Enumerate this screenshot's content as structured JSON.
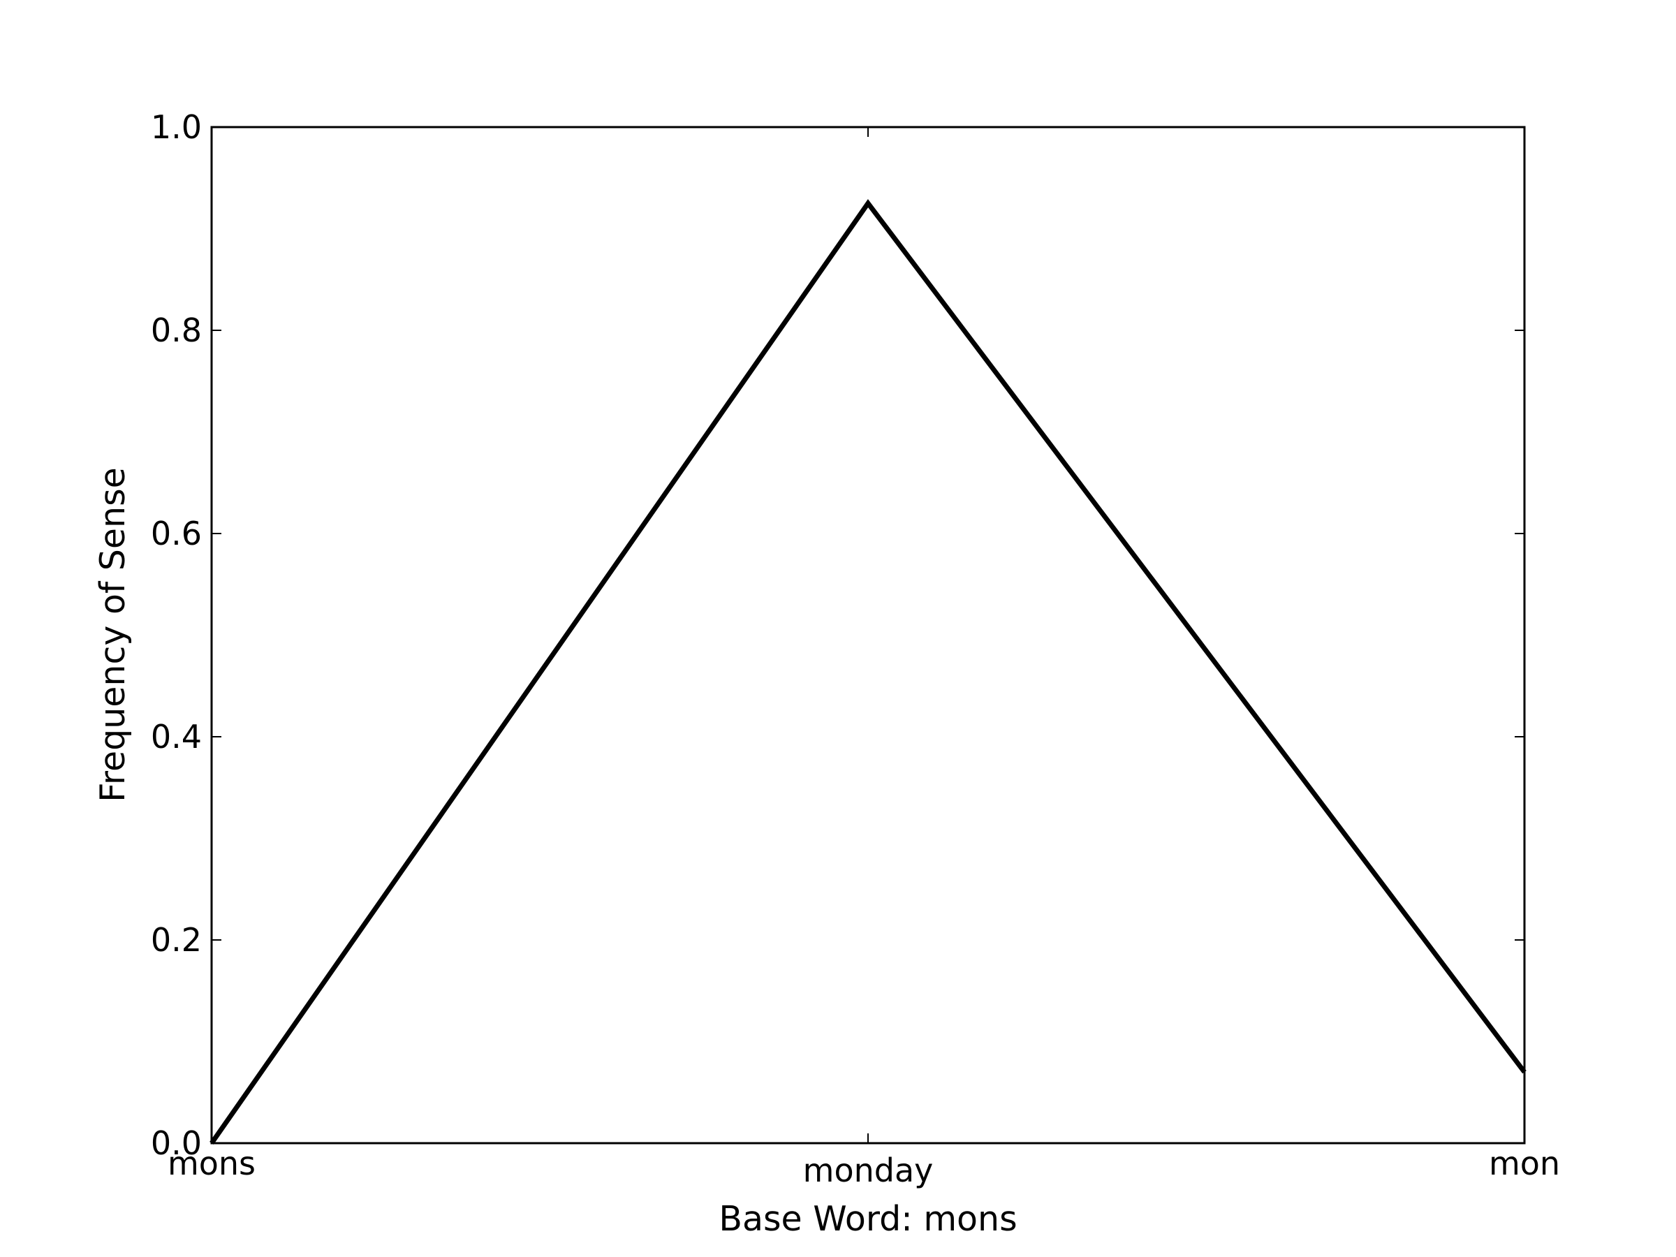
{
  "chart_data": {
    "type": "line",
    "title": "",
    "xlabel": "Base Word: mons",
    "ylabel": "Frequency of Sense",
    "categories": [
      "mons",
      "monday",
      "mon"
    ],
    "series": [
      {
        "values": [
          0.0,
          0.925,
          0.07
        ]
      }
    ],
    "ylim": [
      0.0,
      1.0
    ],
    "yticks": [
      "0.0",
      "0.2",
      "0.4",
      "0.6",
      "0.8",
      "1.0"
    ],
    "grid": false,
    "line_color": "#000000"
  }
}
